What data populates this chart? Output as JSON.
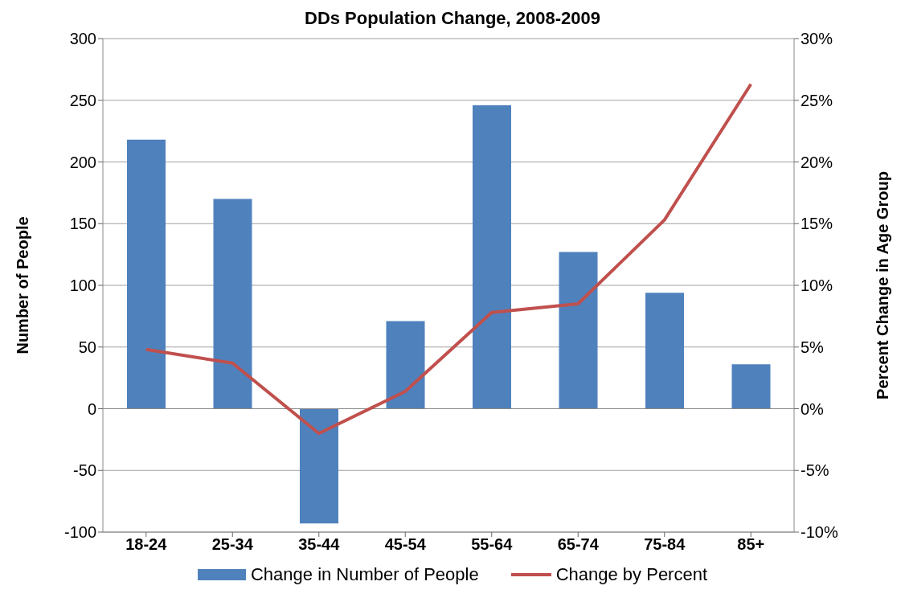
{
  "chart_data": {
    "type": "bar",
    "title": "DDs Population Change, 2008-2009",
    "ylabel": "Number of People",
    "y2label": "Percent Change in Age Group",
    "categories": [
      "18-24",
      "25-34",
      "35-44",
      "45-54",
      "55-64",
      "65-74",
      "75-84",
      "85+"
    ],
    "series": [
      {
        "name": "Change in Number of People",
        "color": "#4f81bd",
        "values": [
          218,
          170,
          -93,
          71,
          246,
          127,
          94,
          36
        ]
      },
      {
        "name": "Change by Percent",
        "type": "line",
        "axis": "y2",
        "color": "#c0504d",
        "values": [
          4.8,
          3.7,
          -2.0,
          1.4,
          7.8,
          8.5,
          15.3,
          26.3
        ]
      }
    ],
    "ylim": [
      -100,
      300
    ],
    "yticks": [
      -100,
      -50,
      0,
      50,
      100,
      150,
      200,
      250,
      300
    ],
    "y2lim": [
      -10,
      30
    ],
    "y2ticks": [
      {
        "value": -10,
        "label": "-10%"
      },
      {
        "value": -5,
        "label": "-5%"
      },
      {
        "value": 0,
        "label": "0%"
      },
      {
        "value": 5,
        "label": "5%"
      },
      {
        "value": 10,
        "label": "10%"
      },
      {
        "value": 15,
        "label": "15%"
      },
      {
        "value": 20,
        "label": "20%"
      },
      {
        "value": 25,
        "label": "25%"
      },
      {
        "value": 30,
        "label": "30%"
      }
    ],
    "grid": "y",
    "legend": "bottom",
    "marker": "none"
  }
}
